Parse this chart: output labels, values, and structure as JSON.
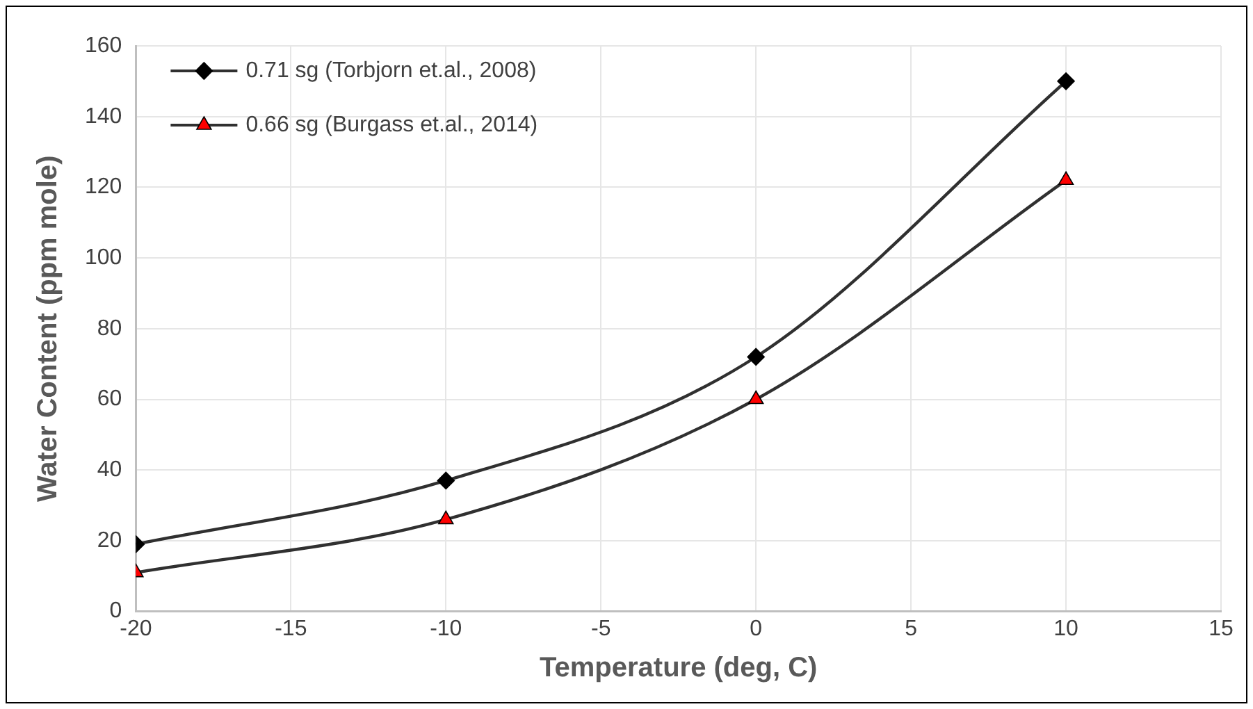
{
  "chart_data": {
    "type": "line",
    "xlabel": "Temperature (deg, C)",
    "ylabel": "Water Content (ppm mole)",
    "x": [
      -20,
      -10,
      0,
      10
    ],
    "series": [
      {
        "name": "0.71 sg (Torbjorn et.al., 2008)",
        "color": "#000000",
        "marker": "diamond",
        "values": [
          19,
          37,
          72,
          150
        ]
      },
      {
        "name": "0.66 sg (Burgass et.al., 2014)",
        "color": "#ff0000",
        "marker": "triangle",
        "values": [
          11,
          26,
          60,
          122
        ]
      }
    ],
    "xlim": [
      -20,
      15
    ],
    "xticks": [
      -20,
      -15,
      -10,
      -5,
      0,
      5,
      10,
      15
    ],
    "ylim": [
      0,
      160
    ],
    "yticks": [
      0,
      20,
      40,
      60,
      80,
      100,
      120,
      140,
      160
    ],
    "grid": true,
    "legend": "top left"
  }
}
